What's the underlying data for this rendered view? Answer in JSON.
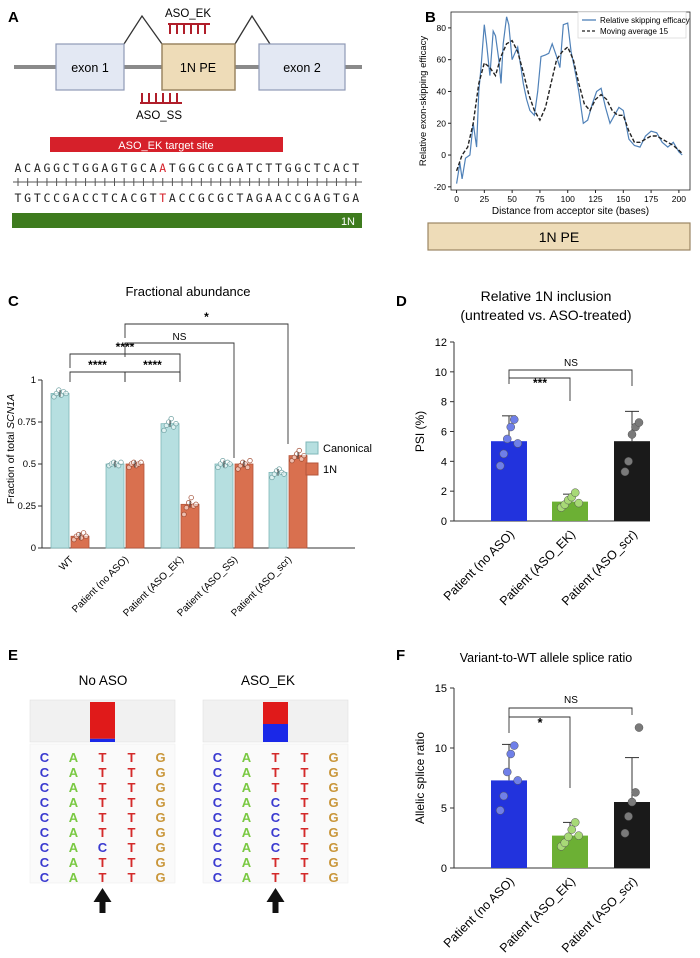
{
  "panels": {
    "A": {
      "letter": "A",
      "aso_ek": "ASO_EK",
      "aso_ss": "ASO_SS",
      "exon1": "exon 1",
      "pe": "1N PE",
      "exon2": "exon 2",
      "target_site": "ASO_EK target site",
      "seq_top": "ACAGGCTGGAGTGCAATGGCGCGATCTTGGCTCACT",
      "seq_top_highlight_index": 15,
      "seq_bottom": "TGTCCGACCTCACGTTACCGCGCTAGAACCGAGTGA",
      "seq_bottom_highlight_index": 15,
      "bar_1n": "1N",
      "colors": {
        "aso": "#b01e2a",
        "target": "#d6202a",
        "green": "#3e7b1e",
        "pe_fill": "#eedcb8",
        "exon_fill": "#e3e8f3"
      }
    },
    "B": {
      "letter": "B",
      "pe_box": "1N PE"
    },
    "C": {
      "letter": "C"
    },
    "D": {
      "letter": "D"
    },
    "E": {
      "letter": "E",
      "left_title": "No ASO",
      "right_title": "ASO_EK",
      "left_columns": [
        [
          "C",
          "C",
          "C",
          "C",
          "C",
          "C",
          "C",
          "C",
          "C"
        ],
        [
          "A",
          "A",
          "A",
          "A",
          "A",
          "A",
          "A",
          "A",
          "A"
        ],
        [
          "T",
          "T",
          "T",
          "T",
          "T",
          "T",
          "C",
          "T",
          "T"
        ],
        [
          "T",
          "T",
          "T",
          "T",
          "T",
          "T",
          "T",
          "T",
          "T"
        ],
        [
          "G",
          "G",
          "G",
          "G",
          "G",
          "G",
          "G",
          "G",
          "G"
        ]
      ],
      "right_columns": [
        [
          "C",
          "C",
          "C",
          "C",
          "C",
          "C",
          "C",
          "C",
          "C"
        ],
        [
          "A",
          "A",
          "A",
          "A",
          "A",
          "A",
          "A",
          "A",
          "A"
        ],
        [
          "T",
          "T",
          "T",
          "C",
          "C",
          "C",
          "C",
          "T",
          "T"
        ],
        [
          "T",
          "T",
          "T",
          "T",
          "T",
          "T",
          "T",
          "T",
          "T"
        ],
        [
          "G",
          "G",
          "G",
          "G",
          "G",
          "G",
          "G",
          "G",
          "G"
        ]
      ],
      "left_bar_fraction": {
        "red": 0.92,
        "blue": 0.08
      },
      "right_bar_fraction": {
        "red": 0.55,
        "blue": 0.45
      },
      "base_colors": {
        "C": "#3a3ad0",
        "A": "#7ac943",
        "T": "#d42a2a",
        "G": "#c9963a"
      }
    },
    "F": {
      "letter": "F"
    }
  },
  "chart_data": [
    {
      "id": "B",
      "type": "line",
      "title": "",
      "xlabel": "Distance from acceptor site (bases)",
      "ylabel": "Relative exon-skipping efficacy",
      "xlim": [
        -5,
        210
      ],
      "ylim": [
        -22,
        90
      ],
      "xticks": [
        0,
        25,
        50,
        75,
        100,
        125,
        150,
        175,
        200
      ],
      "yticks": [
        -20,
        0,
        20,
        40,
        60,
        80
      ],
      "legend": [
        "Relative skipping efficacy",
        "Moving average 15"
      ],
      "series": [
        {
          "name": "Relative skipping efficacy",
          "color": "#4f81b8",
          "style": "solid",
          "x": [
            0,
            3,
            5,
            8,
            12,
            15,
            18,
            20,
            22,
            25,
            27,
            30,
            33,
            35,
            38,
            40,
            42,
            45,
            47,
            50,
            53,
            55,
            58,
            60,
            63,
            66,
            70,
            73,
            76,
            80,
            83,
            86,
            90,
            93,
            96,
            100,
            103,
            106,
            110,
            114,
            118,
            122,
            126,
            130,
            134,
            138,
            142,
            146,
            150,
            155,
            160,
            165,
            170,
            175,
            180,
            185,
            190,
            195,
            200,
            203
          ],
          "values": [
            -18,
            -5,
            -15,
            -2,
            0,
            20,
            5,
            40,
            55,
            82,
            70,
            50,
            78,
            75,
            60,
            45,
            70,
            87,
            82,
            60,
            65,
            68,
            55,
            45,
            35,
            28,
            25,
            40,
            62,
            63,
            64,
            70,
            62,
            55,
            82,
            83,
            65,
            55,
            40,
            20,
            22,
            32,
            40,
            42,
            30,
            20,
            25,
            30,
            28,
            10,
            6,
            5,
            12,
            15,
            14,
            8,
            5,
            8,
            2,
            0
          ]
        },
        {
          "name": "Moving average 15",
          "color": "#222222",
          "style": "dashed",
          "x": [
            0,
            5,
            10,
            15,
            20,
            25,
            30,
            35,
            40,
            45,
            50,
            55,
            60,
            65,
            70,
            75,
            80,
            85,
            90,
            95,
            100,
            105,
            110,
            115,
            120,
            125,
            130,
            135,
            140,
            145,
            150,
            155,
            160,
            165,
            170,
            175,
            180,
            185,
            190,
            195,
            200,
            203
          ],
          "values": [
            -10,
            0,
            5,
            20,
            45,
            58,
            55,
            50,
            62,
            70,
            72,
            65,
            52,
            38,
            28,
            22,
            30,
            45,
            60,
            65,
            68,
            60,
            45,
            32,
            28,
            35,
            38,
            35,
            28,
            25,
            25,
            15,
            8,
            8,
            10,
            12,
            12,
            10,
            8,
            6,
            3,
            1
          ]
        }
      ]
    },
    {
      "id": "C",
      "type": "bar",
      "title": "Fractional abundance",
      "xlabel": "",
      "ylabel": "Fraction of total SCN1A",
      "ylabel_plain": "Fraction of total ",
      "ylabel_italic": "SCN1A",
      "ylim": [
        0,
        1
      ],
      "yticks": [
        0,
        0.25,
        0.5,
        0.75,
        1
      ],
      "ytick_labels": [
        "0",
        "0.25",
        "0.5",
        "0.75",
        "1"
      ],
      "categories": [
        "WT",
        "Patient (no ASO)",
        "Patient (ASO_EK)",
        "Patient (ASO_SS)",
        "Patient (ASO_scr)"
      ],
      "legend": [
        "Canonical",
        "1N"
      ],
      "series": [
        {
          "name": "Canonical",
          "color": "#b6dfe0",
          "values": [
            0.92,
            0.5,
            0.74,
            0.5,
            0.45
          ],
          "points": [
            [
              0.9,
              0.92,
              0.94,
              0.91,
              0.93,
              0.92
            ],
            [
              0.49,
              0.5,
              0.51,
              0.5,
              0.49,
              0.51
            ],
            [
              0.7,
              0.73,
              0.75,
              0.77,
              0.72,
              0.74
            ],
            [
              0.48,
              0.5,
              0.52,
              0.49,
              0.51,
              0.5
            ],
            [
              0.42,
              0.44,
              0.46,
              0.47,
              0.45,
              0.44
            ]
          ]
        },
        {
          "name": "1N",
          "color": "#d9704f",
          "values": [
            0.07,
            0.5,
            0.26,
            0.5,
            0.55
          ],
          "points": [
            [
              0.05,
              0.07,
              0.08,
              0.06,
              0.09,
              0.07
            ],
            [
              0.48,
              0.5,
              0.51,
              0.49,
              0.5,
              0.51
            ],
            [
              0.2,
              0.24,
              0.27,
              0.3,
              0.25,
              0.26
            ],
            [
              0.47,
              0.49,
              0.51,
              0.5,
              0.48,
              0.52
            ],
            [
              0.52,
              0.54,
              0.56,
              0.58,
              0.53,
              0.55
            ]
          ]
        }
      ],
      "significance": [
        {
          "label": "****",
          "from": 0,
          "to": 1
        },
        {
          "label": "****",
          "from": 1,
          "to": 2
        },
        {
          "label": "****",
          "from": 0,
          "to": 2
        },
        {
          "label": "NS",
          "from": 1,
          "to": 3
        },
        {
          "label": "*",
          "from": 1,
          "to": 4
        }
      ]
    },
    {
      "id": "D",
      "type": "bar",
      "title": "Relative 1N inclusion",
      "subtitle": "(untreated vs. ASO-treated)",
      "xlabel": "",
      "ylabel": "PSI (%)",
      "ylim": [
        0,
        12
      ],
      "yticks": [
        0,
        2,
        4,
        6,
        8,
        10,
        12
      ],
      "categories": [
        "Patient (no ASO)",
        "Patient (ASO_EK)",
        "Patient (ASO_scr)"
      ],
      "values": [
        5.35,
        1.3,
        5.35
      ],
      "errors": [
        1.7,
        0.5,
        2.0
      ],
      "colors": [
        "#2233dd",
        "#6cb034",
        "#1a1a1a"
      ],
      "point_colors": [
        "#6f7fe8",
        "#a7d976",
        "#7a7a7a"
      ],
      "points": [
        [
          3.7,
          4.5,
          5.5,
          6.3,
          6.8,
          5.2
        ],
        [
          0.9,
          1.1,
          1.4,
          1.6,
          1.9,
          1.2
        ],
        [
          3.3,
          4.0,
          5.8,
          6.3,
          6.6
        ]
      ],
      "significance": [
        {
          "label": "***",
          "from": 0,
          "to": 1
        },
        {
          "label": "NS",
          "from": 0,
          "to": 2
        }
      ]
    },
    {
      "id": "F",
      "type": "bar",
      "title": "Variant-to-WT allele splice ratio",
      "xlabel": "",
      "ylabel": "Allelic splice ratio",
      "ylim": [
        0,
        15
      ],
      "yticks": [
        0,
        5,
        10,
        15
      ],
      "categories": [
        "Patient (no ASO)",
        "Patient (ASO_EK)",
        "Patient (ASO_scr)"
      ],
      "values": [
        7.3,
        2.7,
        5.5
      ],
      "errors": [
        3.0,
        1.1,
        3.7
      ],
      "colors": [
        "#2233dd",
        "#6cb034",
        "#1a1a1a"
      ],
      "point_colors": [
        "#6f7fe8",
        "#a7d976",
        "#7a7a7a"
      ],
      "points": [
        [
          4.8,
          6.0,
          8.0,
          9.5,
          10.2,
          7.3
        ],
        [
          1.8,
          2.1,
          2.6,
          3.2,
          3.8,
          2.7
        ],
        [
          2.9,
          4.3,
          5.5,
          6.3,
          11.7
        ]
      ],
      "significance": [
        {
          "label": "*",
          "from": 0,
          "to": 1
        },
        {
          "label": "NS",
          "from": 0,
          "to": 2
        }
      ]
    }
  ]
}
